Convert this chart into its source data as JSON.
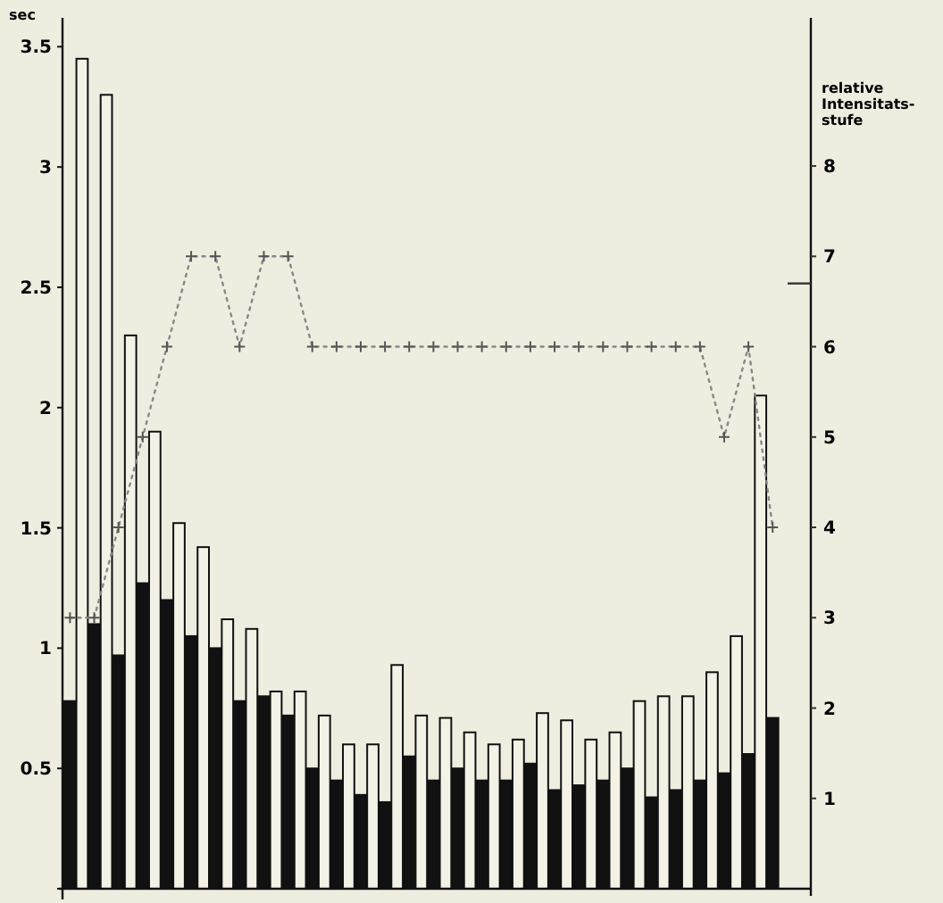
{
  "chart_data": {
    "type": "bar",
    "ylabel": "sec",
    "y2label": "relative\nIntensitats-\nstufe",
    "categories": [
      null,
      null,
      null,
      null,
      null,
      null,
      null,
      null,
      null,
      null,
      null,
      null,
      null,
      null,
      null,
      null,
      null,
      null,
      null,
      null,
      null,
      null,
      null,
      null,
      null,
      null,
      null,
      null,
      null,
      null
    ],
    "series": [
      {
        "color": "#111111",
        "values": [
          0.78,
          1.1,
          0.97,
          1.27,
          1.2,
          1.05,
          1.0,
          0.78,
          0.8,
          0.72,
          0.5,
          0.45,
          0.39,
          0.36,
          0.55,
          0.45,
          0.5,
          0.45,
          0.45,
          0.52,
          0.41,
          0.43,
          0.45,
          0.5,
          0.38,
          0.41,
          0.45,
          0.48,
          0.56,
          0.71
        ]
      },
      {
        "color": "#f4f2e6",
        "values": [
          3.45,
          3.3,
          2.3,
          1.9,
          1.52,
          1.42,
          1.12,
          1.08,
          0.82,
          0.82,
          0.72,
          0.6,
          0.6,
          0.93,
          0.72,
          0.71,
          0.65,
          0.6,
          0.62,
          0.73,
          0.7,
          0.62,
          0.65,
          0.78,
          0.8,
          0.8,
          0.9,
          1.05,
          2.05,
          null
        ]
      },
      {
        "type": "line",
        "axis": "y2",
        "color": "#888888",
        "values": [
          3,
          3,
          4,
          5,
          6,
          7,
          7,
          6,
          7,
          7,
          6,
          6,
          6,
          6,
          6,
          6,
          6,
          6,
          6,
          6,
          6,
          6,
          6,
          6,
          6,
          6,
          6,
          5,
          6,
          4
        ]
      }
    ],
    "ylim": [
      0,
      3.62
    ],
    "yticks": [
      {
        "value": 0,
        "label": null
      },
      0.5,
      1,
      1.5,
      2,
      2.5,
      3,
      3.5
    ],
    "y2lim": [
      0,
      9.64
    ],
    "y2ticks": [
      1,
      2,
      3,
      4,
      5,
      6,
      {
        "value": 6.7,
        "label": null
      },
      7,
      8
    ],
    "marker": "cross",
    "line_style": "dotted",
    "grid": false
  }
}
